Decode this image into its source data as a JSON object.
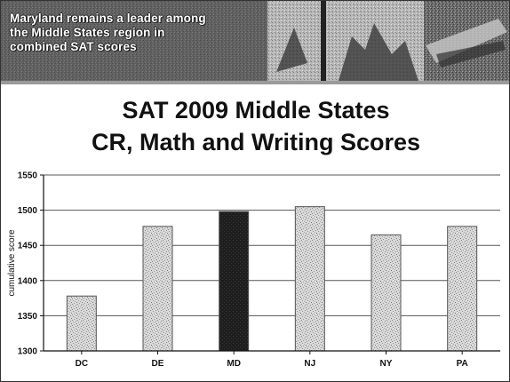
{
  "banner": {
    "lines": [
      "Maryland remains a leader among",
      "the Middle States region in",
      "combined SAT scores"
    ]
  },
  "title": {
    "line1": "SAT 2009 Middle States",
    "line2": "CR, Math and Writing Scores"
  },
  "colors": {
    "bar_fill": "#d6d6d6",
    "highlight_fill": "#222222",
    "gridline": "#555555"
  },
  "chart_data": {
    "type": "bar",
    "categories": [
      "DC",
      "DE",
      "MD",
      "NJ",
      "NY",
      "PA"
    ],
    "values": [
      1378,
      1477,
      1498,
      1505,
      1465,
      1477
    ],
    "highlight_category": "MD",
    "title": "SAT 2009 Middle States CR, Math and Writing Scores",
    "xlabel": "",
    "ylabel": "cumulative score",
    "ylim": [
      1300,
      1550
    ],
    "yticks": [
      1300,
      1350,
      1400,
      1450,
      1500,
      1550
    ],
    "grid": true
  }
}
